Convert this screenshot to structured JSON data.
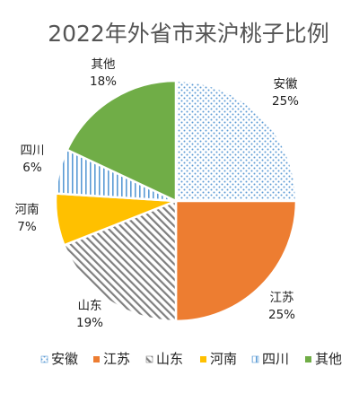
{
  "chart_data": {
    "type": "pie",
    "title": "2022年外省市来沪桃子比例",
    "slices": [
      {
        "name": "安徽",
        "value": 25,
        "label": "25%",
        "color": "#5b9bd5",
        "pattern": "dots"
      },
      {
        "name": "江苏",
        "value": 25,
        "label": "25%",
        "color": "#ed7d31",
        "pattern": "solid"
      },
      {
        "name": "山东",
        "value": 19,
        "label": "19%",
        "color": "#a5a5a5",
        "pattern": "hatch"
      },
      {
        "name": "河南",
        "value": 7,
        "label": "7%",
        "color": "#ffc000",
        "pattern": "solid"
      },
      {
        "name": "四川",
        "value": 6,
        "label": "6%",
        "color": "#5b9bd5",
        "pattern": "vlines"
      },
      {
        "name": "其他",
        "value": 18,
        "label": "18%",
        "color": "#70ad47",
        "pattern": "solid"
      }
    ],
    "legend_position": "bottom"
  }
}
